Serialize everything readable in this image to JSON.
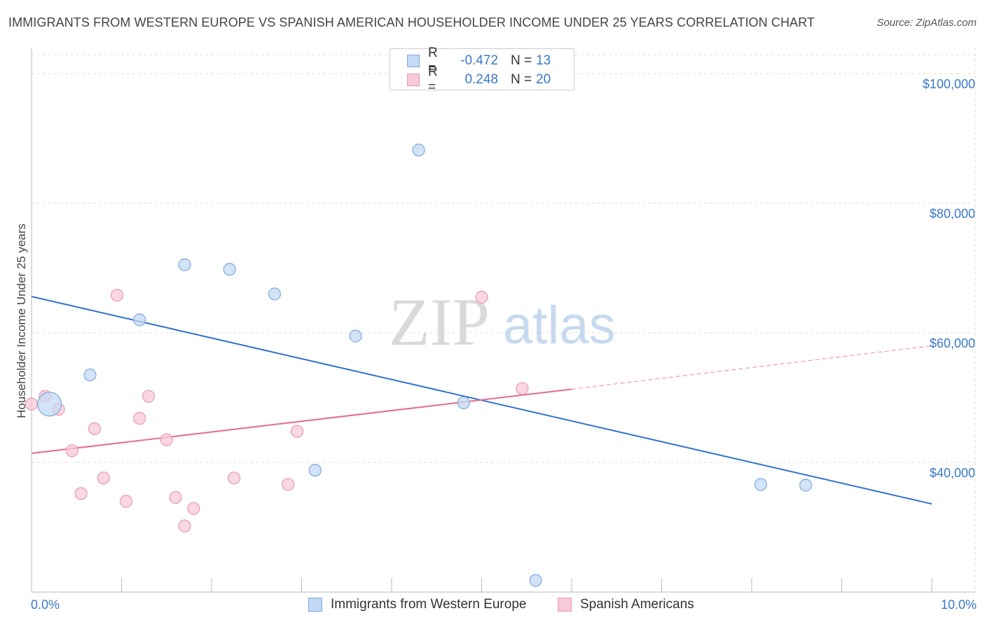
{
  "header": {
    "title": "IMMIGRANTS FROM WESTERN EUROPE VS SPANISH AMERICAN HOUSEHOLDER INCOME UNDER 25 YEARS CORRELATION CHART",
    "source": "Source: ZipAtlas.com"
  },
  "watermark": {
    "zip": "ZIP",
    "atlas": "atlas"
  },
  "legend": {
    "series1": {
      "r_label": "R =",
      "r_value": "-0.472",
      "n_label": "N =",
      "n_value": "13"
    },
    "series2": {
      "r_label": "R =",
      "r_value": "0.248",
      "n_label": "N =",
      "n_value": "20"
    }
  },
  "colors": {
    "blue": "#3a78c8",
    "blue_fill": "#c4d9f5",
    "blue_line": "#2f72cf",
    "pink": "#e8729a",
    "pink_fill": "#f8c9d7",
    "pink_line": "#e56a92"
  },
  "chart_data": {
    "type": "scatter",
    "title": "IMMIGRANTS FROM WESTERN EUROPE VS SPANISH AMERICAN HOUSEHOLDER INCOME UNDER 25 YEARS CORRELATION CHART",
    "xlabel": "",
    "ylabel": "Householder Income Under 25 years",
    "xlim": [
      0,
      10
    ],
    "ylim": [
      20000,
      104000
    ],
    "x_tick_labels": [
      "0.0%",
      "10.0%"
    ],
    "y_ticks": [
      40000,
      60000,
      80000,
      100000
    ],
    "y_tick_labels": [
      "$40,000",
      "$60,000",
      "$80,000",
      "$100,000"
    ],
    "grid": true,
    "series": [
      {
        "name": "Immigrants from Western Europe",
        "color": "#3a78c8",
        "points": [
          {
            "x": 0.2,
            "y": 49000,
            "big": true
          },
          {
            "x": 0.65,
            "y": 53500
          },
          {
            "x": 1.2,
            "y": 62000
          },
          {
            "x": 1.7,
            "y": 70500
          },
          {
            "x": 2.2,
            "y": 69800
          },
          {
            "x": 2.7,
            "y": 66000
          },
          {
            "x": 3.15,
            "y": 38800
          },
          {
            "x": 3.6,
            "y": 59500
          },
          {
            "x": 4.3,
            "y": 88200
          },
          {
            "x": 4.8,
            "y": 49200
          },
          {
            "x": 5.6,
            "y": 21800
          },
          {
            "x": 8.1,
            "y": 36600
          },
          {
            "x": 8.6,
            "y": 36500
          }
        ],
        "trend": {
          "x0": 0,
          "y0": 65600,
          "x1": 10,
          "y1": 33600
        }
      },
      {
        "name": "Spanish Americans",
        "color": "#e8729a",
        "points": [
          {
            "x": 0.0,
            "y": 49000
          },
          {
            "x": 0.15,
            "y": 50200
          },
          {
            "x": 0.3,
            "y": 48200
          },
          {
            "x": 0.45,
            "y": 41800
          },
          {
            "x": 0.55,
            "y": 35200
          },
          {
            "x": 0.7,
            "y": 45200
          },
          {
            "x": 0.8,
            "y": 37600
          },
          {
            "x": 0.95,
            "y": 65800
          },
          {
            "x": 1.05,
            "y": 34000
          },
          {
            "x": 1.2,
            "y": 46800
          },
          {
            "x": 1.3,
            "y": 50200
          },
          {
            "x": 1.5,
            "y": 43500
          },
          {
            "x": 1.6,
            "y": 34600
          },
          {
            "x": 1.7,
            "y": 30200
          },
          {
            "x": 1.8,
            "y": 32900
          },
          {
            "x": 2.25,
            "y": 37600
          },
          {
            "x": 2.85,
            "y": 36600
          },
          {
            "x": 2.95,
            "y": 44800
          },
          {
            "x": 5.0,
            "y": 65500
          },
          {
            "x": 5.45,
            "y": 51400
          }
        ],
        "trend": {
          "x0": 0,
          "y0": 41400,
          "x1": 6.0,
          "y1": 51300,
          "dashed_to_x": 10,
          "dashed_to_y": 58000
        }
      }
    ]
  },
  "bottom_legend": {
    "item1": "Immigrants from Western Europe",
    "item2": "Spanish Americans"
  }
}
